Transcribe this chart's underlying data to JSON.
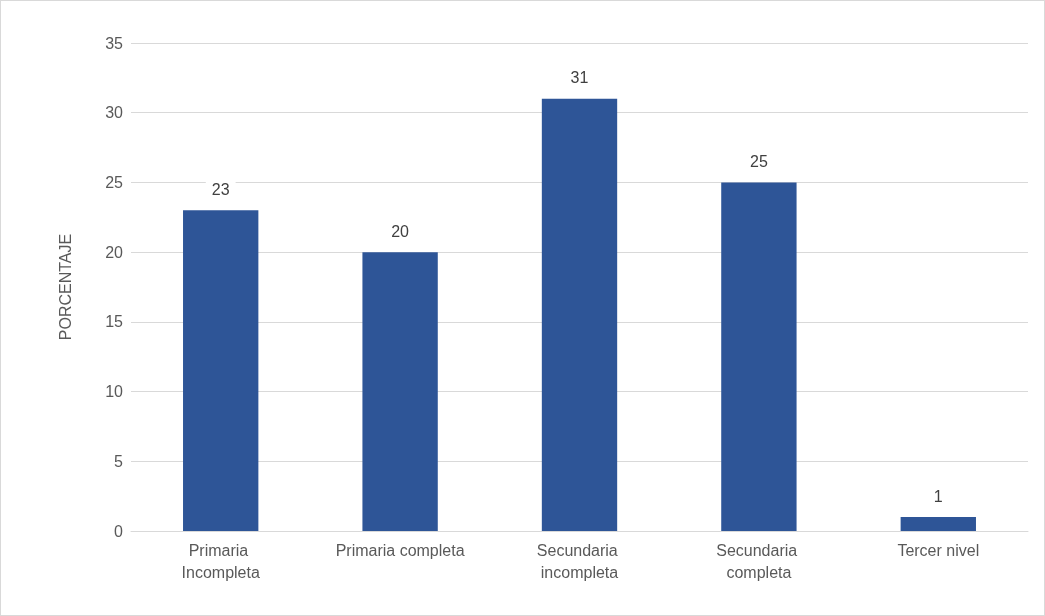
{
  "chart_data": {
    "type": "bar",
    "ylabel": "PORCENTAJE",
    "categories": [
      "Primaria Incompleta",
      "Primaria completa",
      "Secundaria incompleta",
      "Secundaria completa",
      "Tercer nivel"
    ],
    "values": [
      23,
      20,
      31,
      25,
      1
    ],
    "color": "#2e5597",
    "ylim": [
      0,
      35
    ],
    "yticks": [
      0,
      5,
      10,
      15,
      20,
      25,
      30,
      35
    ],
    "grid": "y",
    "data_labels": true
  }
}
